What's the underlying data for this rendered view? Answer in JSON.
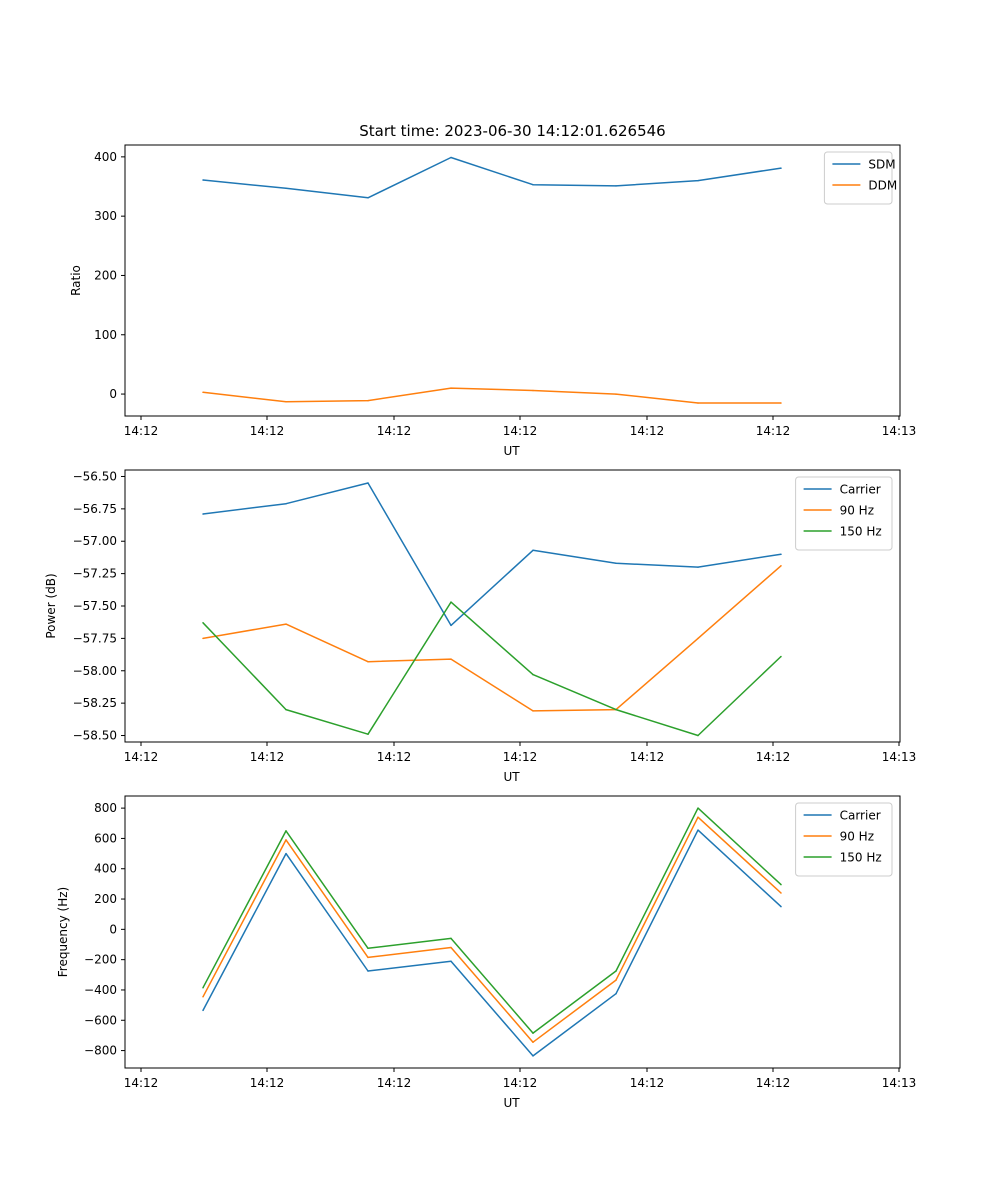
{
  "chart_data": [
    {
      "type": "line",
      "title": "Start time: 2023-06-30 14:12:01.626546",
      "xlabel": "UT",
      "ylabel": "Ratio",
      "x_ticks": [
        "14:12",
        "14:12",
        "14:12",
        "14:12",
        "14:12",
        "14:12",
        "14:13"
      ],
      "ylim": [
        -37,
        420
      ],
      "y_ticks": [
        0,
        100,
        200,
        300,
        400
      ],
      "legend": "top-right",
      "grid": false,
      "series": [
        {
          "name": "SDM",
          "color": "#1f77b4",
          "values": [
            361,
            347,
            331,
            399,
            353,
            351,
            360,
            381
          ]
        },
        {
          "name": "DDM",
          "color": "#ff7f0e",
          "values": [
            3,
            -13,
            -11,
            10,
            6,
            0,
            -15,
            -15
          ]
        }
      ]
    },
    {
      "type": "line",
      "title": "",
      "xlabel": "UT",
      "ylabel": "Power (dB)",
      "x_ticks": [
        "14:12",
        "14:12",
        "14:12",
        "14:12",
        "14:12",
        "14:12",
        "14:13"
      ],
      "ylim": [
        -58.55,
        -56.45
      ],
      "y_ticks": [
        -56.5,
        -56.75,
        -57.0,
        -57.25,
        -57.5,
        -57.75,
        -58.0,
        -58.25,
        -58.5
      ],
      "y_tick_labels": [
        "−56.50",
        "−56.75",
        "−57.00",
        "−57.25",
        "−57.50",
        "−57.75",
        "−58.00",
        "−58.25",
        "−58.50"
      ],
      "legend": "top-right",
      "grid": false,
      "series": [
        {
          "name": "Carrier",
          "color": "#1f77b4",
          "values": [
            -56.79,
            -56.71,
            -56.55,
            -57.65,
            -57.07,
            -57.17,
            -57.2,
            -57.1
          ]
        },
        {
          "name": "90 Hz",
          "color": "#ff7f0e",
          "values": [
            -57.75,
            -57.64,
            -57.93,
            -57.91,
            -58.31,
            -58.3,
            -57.75,
            -57.19
          ]
        },
        {
          "name": "150 Hz",
          "color": "#2ca02c",
          "values": [
            -57.63,
            -58.3,
            -58.49,
            -57.47,
            -58.03,
            -58.3,
            -58.5,
            -57.89
          ]
        }
      ]
    },
    {
      "type": "line",
      "title": "",
      "xlabel": "UT",
      "ylabel": "Frequency (Hz)",
      "x_ticks": [
        "14:12",
        "14:12",
        "14:12",
        "14:12",
        "14:12",
        "14:12",
        "14:13"
      ],
      "ylim": [
        -915,
        880
      ],
      "y_ticks": [
        -800,
        -600,
        -400,
        -200,
        0,
        200,
        400,
        600,
        800
      ],
      "y_tick_labels": [
        "−800",
        "−600",
        "−400",
        "−200",
        "0",
        "200",
        "400",
        "600",
        "800"
      ],
      "legend": "top-right",
      "grid": false,
      "series": [
        {
          "name": "Carrier",
          "color": "#1f77b4",
          "values": [
            -535,
            500,
            -275,
            -210,
            -835,
            -425,
            655,
            150
          ]
        },
        {
          "name": "90 Hz",
          "color": "#ff7f0e",
          "values": [
            -445,
            590,
            -185,
            -120,
            -745,
            -335,
            740,
            240
          ]
        },
        {
          "name": "150 Hz",
          "color": "#2ca02c",
          "values": [
            -385,
            650,
            -125,
            -60,
            -685,
            -275,
            800,
            295
          ]
        }
      ]
    }
  ]
}
